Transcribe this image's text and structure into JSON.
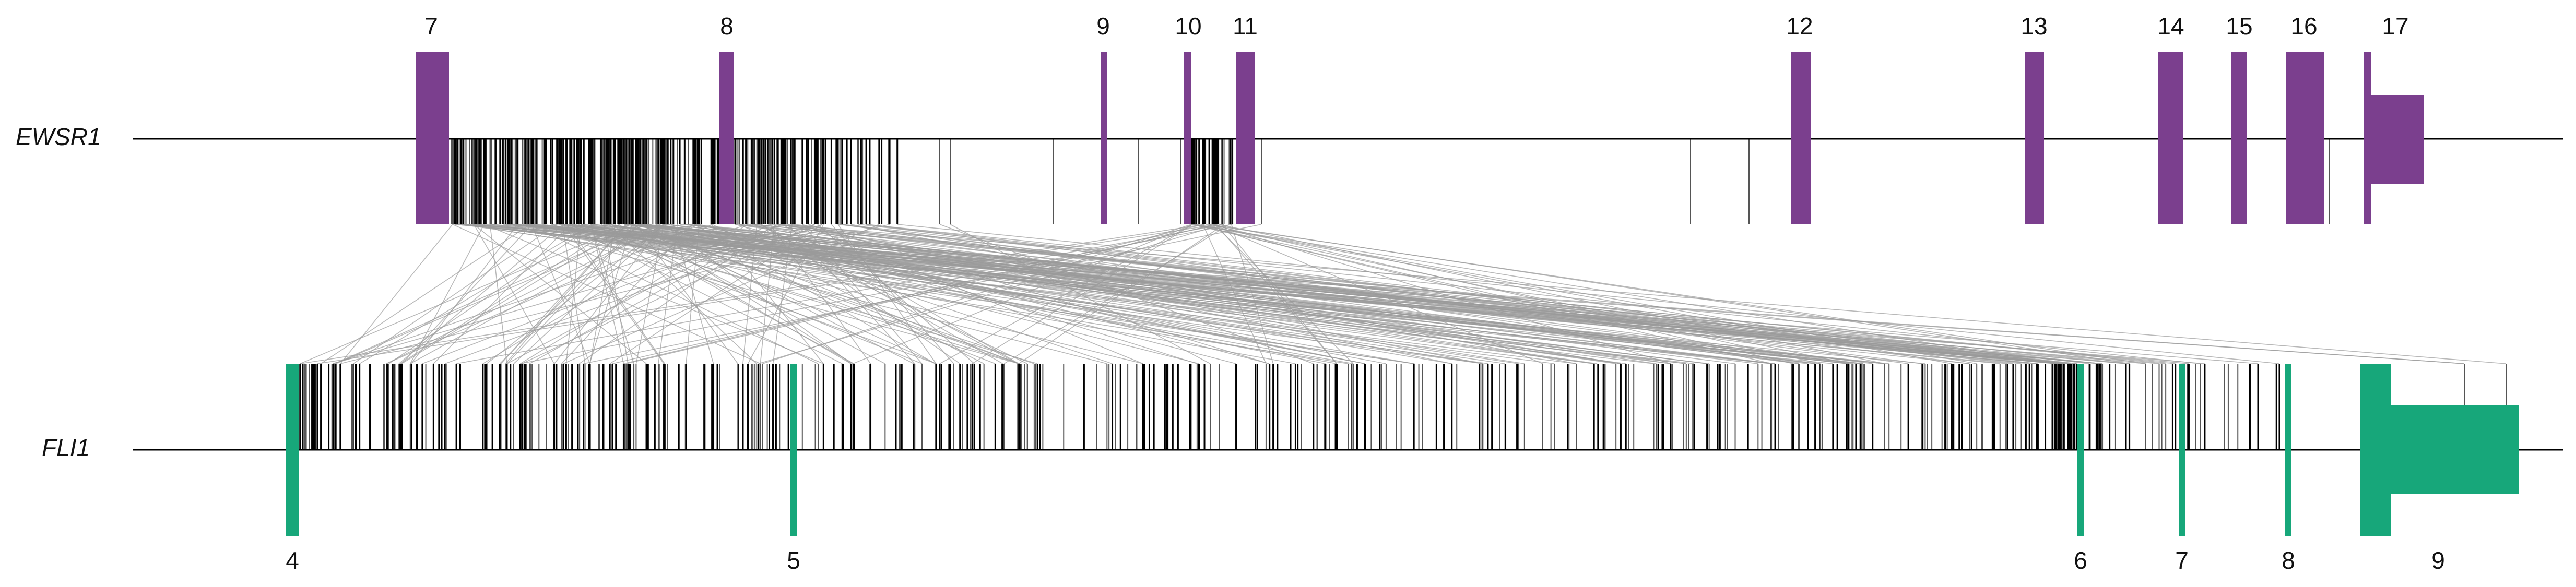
{
  "genes": [
    {
      "id": "ewsr1",
      "name": "EWSR1",
      "color": "#7b3f8e",
      "exons": [
        "7",
        "8",
        "9",
        "10",
        "11",
        "12",
        "13",
        "14",
        "15",
        "16",
        "17"
      ]
    },
    {
      "id": "fli1",
      "name": "FLI1",
      "color": "#17a77a",
      "exons": [
        "4",
        "5",
        "6",
        "7",
        "8",
        "9"
      ]
    }
  ],
  "breakpoint_marks": {
    "color": "#000000",
    "description_free": true
  },
  "fusion_links": {
    "color": "#9a9a9a"
  }
}
